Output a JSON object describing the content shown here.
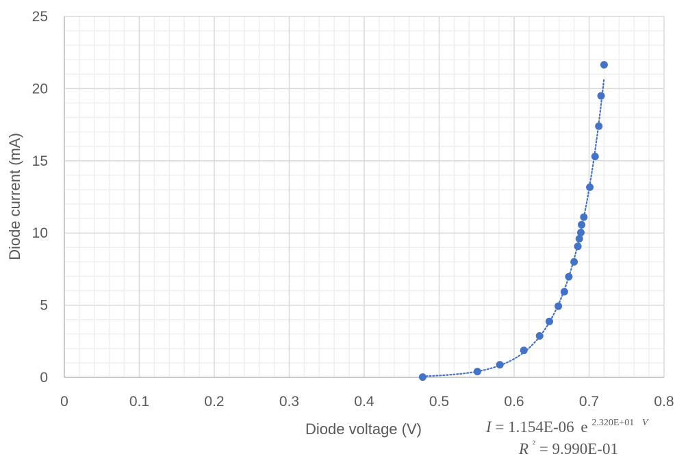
{
  "chart_data": {
    "type": "scatter",
    "title": "",
    "xlabel": "Diode voltage (V)",
    "ylabel": "Diode current (mA)",
    "xlim": [
      0,
      0.8
    ],
    "ylim": [
      0,
      25
    ],
    "x_ticks": [
      "0",
      "0.1",
      "0.2",
      "0.3",
      "0.4",
      "0.5",
      "0.6",
      "0.7",
      "0.8"
    ],
    "y_ticks": [
      "0",
      "5",
      "10",
      "15",
      "20",
      "25"
    ],
    "grid": "major and minor",
    "marker_color": "#4472C4",
    "points": [
      [
        0.478,
        0.02
      ],
      [
        0.551,
        0.4
      ],
      [
        0.581,
        0.87
      ],
      [
        0.613,
        1.87
      ],
      [
        0.634,
        2.87
      ],
      [
        0.647,
        3.87
      ],
      [
        0.659,
        4.93
      ],
      [
        0.667,
        5.93
      ],
      [
        0.673,
        6.97
      ],
      [
        0.68,
        8.0
      ],
      [
        0.685,
        9.07
      ],
      [
        0.687,
        9.6
      ],
      [
        0.689,
        10.03
      ],
      [
        0.69,
        10.57
      ],
      [
        0.693,
        11.1
      ],
      [
        0.701,
        13.17
      ],
      [
        0.708,
        15.3
      ],
      [
        0.713,
        17.4
      ],
      [
        0.716,
        19.5
      ],
      [
        0.72,
        21.65
      ]
    ],
    "trendline": {
      "type": "exponential",
      "style": "dotted",
      "a": 1.154e-06,
      "b": 23.2,
      "equation_var": "I",
      "equation_coef": "1.154E-06",
      "equation_base": "e",
      "equation_exp": "2.320E+01",
      "equation_exp_var": "V",
      "r2_label": "R",
      "r2_value": "9.990E-01"
    }
  }
}
